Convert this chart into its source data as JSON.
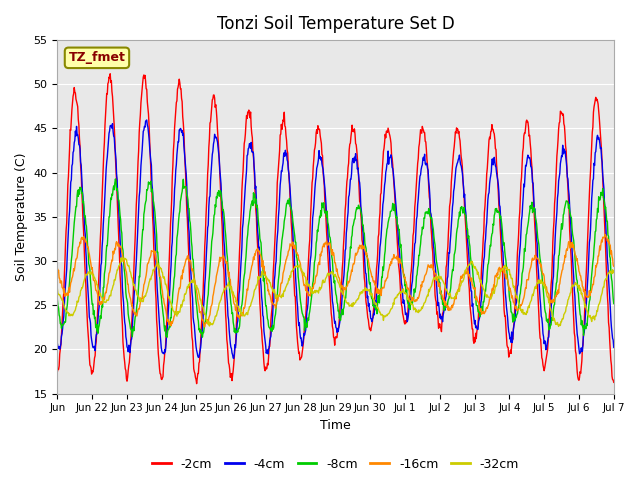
{
  "title": "Tonzi Soil Temperature Set D",
  "xlabel": "Time",
  "ylabel": "Soil Temperature (C)",
  "ylim": [
    15,
    55
  ],
  "bg_color": "#e8e8e8",
  "fig_color": "#ffffff",
  "label_text": "TZ_fmet",
  "label_box_color": "#ffffaa",
  "label_text_color": "#880000",
  "line_colors": [
    "#ff0000",
    "#0000ee",
    "#00cc00",
    "#ff8800",
    "#cccc00"
  ],
  "line_labels": [
    "-2cm",
    "-4cm",
    "-8cm",
    "-16cm",
    "-32cm"
  ],
  "tick_labels": [
    "Jun",
    "Jun 22",
    "Jun 23",
    "Jun 24",
    "Jun 25",
    "Jun 26",
    "Jun 27",
    "Jun 28",
    "Jun 29",
    "Jun 30",
    "Jul 1",
    "Jul 2",
    "Jul 3",
    "Jul 4",
    "Jul 5",
    "Jul 6",
    "Jul 7"
  ],
  "n_points": 960
}
